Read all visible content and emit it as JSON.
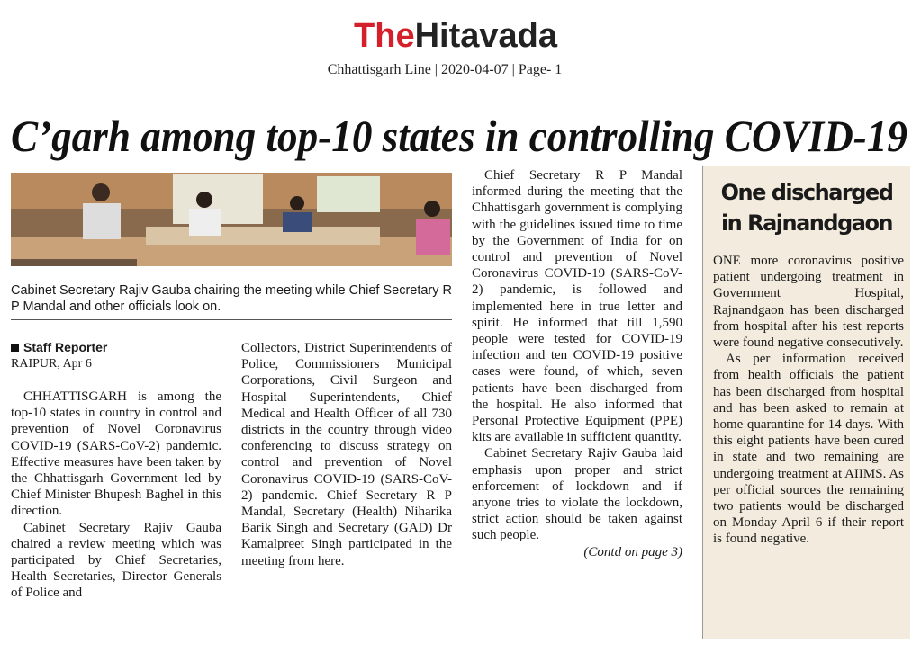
{
  "header": {
    "logo_the": "The",
    "logo_hitavada": "Hitavada",
    "dateline": "Chhattisgarh Line | 2020-04-07 | Page- 1"
  },
  "article": {
    "headline": "C’garh among top-10 states in controlling COVID-19",
    "photo_caption": "Cabinet Secretary Rajiv Gauba chairing the meeting while Chief Secretary R P Mandal and other officials look on.",
    "byline": "Staff Reporter",
    "dateline": "RAIPUR, Apr 6",
    "columns": [
      [
        "CHHATTISGARH is among the top-10 states in country in control and prevention of Novel Coronavirus COVID-19 (SARS-CoV-2) pandemic. Effective measures have been taken by the Chhattisgarh Government led by Chief Minister Bhupesh Baghel in this direction.",
        "Cabinet Secretary Rajiv Gauba chaired a review meeting which was participated by Chief Secretaries, Health Secretaries, Director Generals of Police and"
      ],
      [
        "Collectors, District Superintendents of Police, Commissioners Municipal Corporations, Civil Surgeon and Hospital Superintendents, Chief Medical and Health Officer of all 730 districts in the country through video conferencing to discuss strategy on control and prevention of Novel Coronavirus COVID-19 (SARS-CoV-2) pandemic. Chief Secretary R P Mandal, Secretary (Health) Niharika Barik Singh and Secretary (GAD) Dr Kamalpreet Singh participated in the meeting from here."
      ],
      [
        "Chief Secretary R P Mandal informed during the meeting that the Chhattisgarh government is complying with the guidelines issued time to time by the Government of India for on control and prevention of Novel Coronavirus COVID-19 (SARS-CoV-2) pandemic, is followed and implemented here in true letter and spirit. He informed that till 1,590 people were tested for COVID-19 infection and ten COVID-19 positive cases were found, of which, seven patients have been discharged from the hospital. He also informed that Personal Protective Equipment (PPE) kits are available in sufficient quantity.",
        "Cabinet Secretary Rajiv Gauba laid emphasis upon proper and strict enforcement of lockdown and if anyone tries to violate the lockdown, strict action should be taken against such people."
      ]
    ],
    "continuation": "(Contd on page 3)"
  },
  "sidebar": {
    "title": "One discharged in Rajnandgaon",
    "paragraphs": [
      "ONE more coronavirus positive patient undergoing treatment in Government Hospital, Rajnandgaon has been discharged from hospital after his test reports were found negative consecutively.",
      "As per information received from health officials the patient has been discharged from hospital and has been asked to remain at home quarantine for 14 days. With this eight patients have been cured in state and two remaining are undergoing treatment at AIIMS. As per official sources the remaining two patients would be discharged on Monday April 6 if their report is found negative."
    ]
  }
}
